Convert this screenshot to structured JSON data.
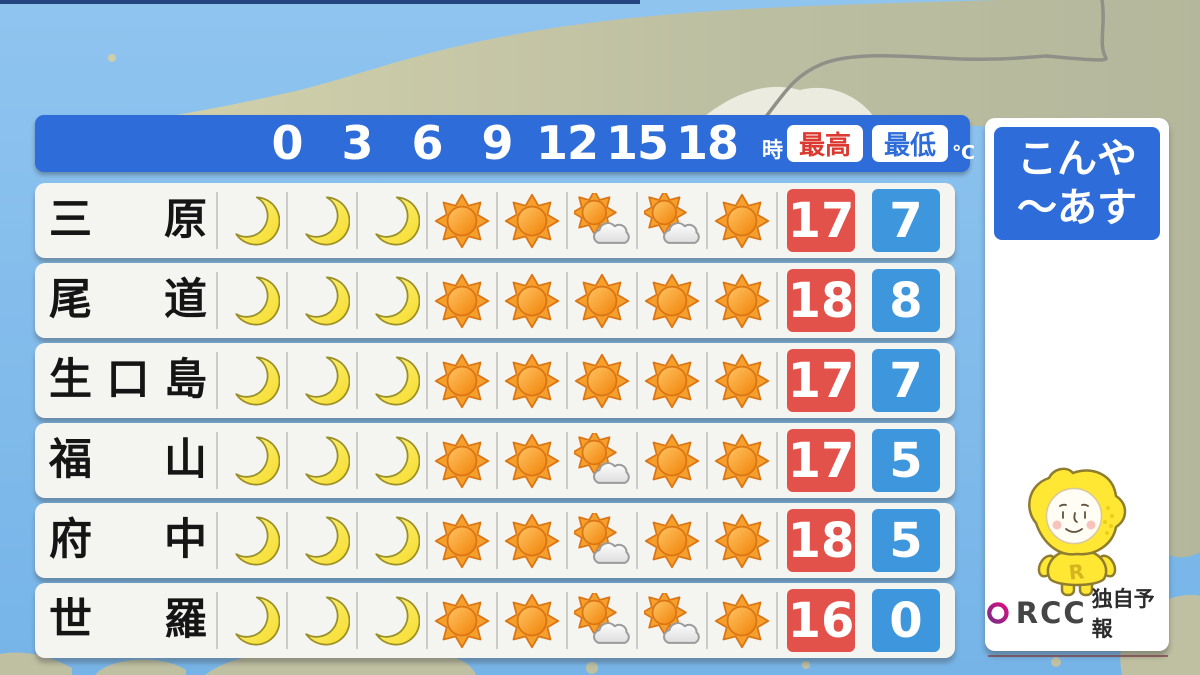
{
  "header": {
    "hours": [
      "0",
      "3",
      "6",
      "9",
      "12",
      "15",
      "18"
    ],
    "hour_unit": "時",
    "high_label": "最高",
    "low_label": "最低",
    "temp_unit": "℃"
  },
  "side_panel": {
    "period_line1": "こんや",
    "period_line2": "～あす",
    "mascot_letter": "R",
    "logo_text": "RCC",
    "logo_label": "独自予報"
  },
  "forecast_rows": [
    {
      "name": "三原",
      "icons": [
        "moon",
        "moon",
        "moon",
        "sun",
        "sun",
        "sun-cloud",
        "sun-cloud",
        "sun"
      ],
      "high": "17",
      "low": "7"
    },
    {
      "name": "尾道",
      "icons": [
        "moon",
        "moon",
        "moon",
        "sun",
        "sun",
        "sun",
        "sun",
        "sun"
      ],
      "high": "18",
      "low": "8"
    },
    {
      "name": "生口島",
      "icons": [
        "moon",
        "moon",
        "moon",
        "sun",
        "sun",
        "sun",
        "sun",
        "sun"
      ],
      "high": "17",
      "low": "7"
    },
    {
      "name": "福山",
      "icons": [
        "moon",
        "moon",
        "moon",
        "sun",
        "sun",
        "sun-cloud",
        "sun",
        "sun"
      ],
      "high": "17",
      "low": "5"
    },
    {
      "name": "府中",
      "icons": [
        "moon",
        "moon",
        "moon",
        "sun",
        "sun",
        "sun-cloud",
        "sun",
        "sun"
      ],
      "high": "18",
      "low": "5"
    },
    {
      "name": "世羅",
      "icons": [
        "moon",
        "moon",
        "moon",
        "sun",
        "sun",
        "sun-cloud",
        "sun-cloud",
        "sun"
      ],
      "high": "16",
      "low": "0"
    }
  ],
  "colors": {
    "header_blue": "#2D6CD9",
    "high_red": "#E2524A",
    "low_blue": "#3E96DC",
    "row_bg": "#F4F4F1",
    "sea": "#85BEEC",
    "land": "#C4C4A4",
    "mascot_yellow": "#FFE733"
  }
}
